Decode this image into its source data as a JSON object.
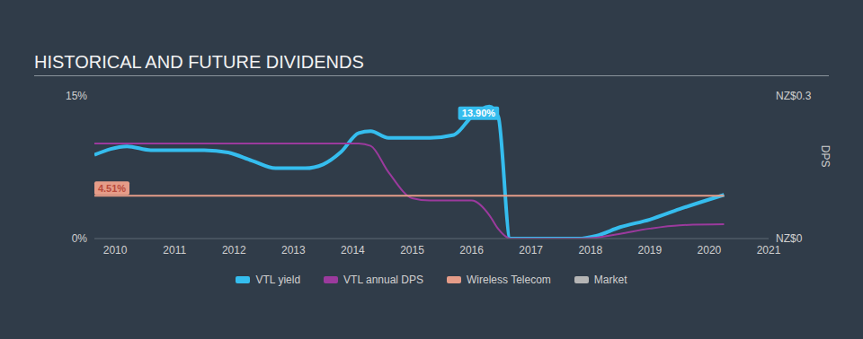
{
  "chart_data": {
    "type": "line",
    "title": "HISTORICAL AND FUTURE DIVIDENDS",
    "x": [
      2009.65,
      2010.2,
      2010.6,
      2011.5,
      2011.9,
      2012.3,
      2012.7,
      2013.2,
      2013.5,
      2013.8,
      2014.1,
      2014.3,
      2014.6,
      2015.0,
      2015.3,
      2015.7,
      2016.0,
      2016.3,
      2016.45,
      2016.65,
      2017.8,
      2018.1,
      2018.5,
      2019.0,
      2019.5,
      2020.25
    ],
    "series": [
      {
        "name": "VTL yield",
        "color": "#35bdee",
        "values": [
          8.8,
          9.7,
          9.3,
          9.3,
          9.05,
          8.2,
          7.4,
          7.4,
          7.8,
          9.1,
          11.1,
          11.3,
          10.6,
          10.6,
          10.6,
          10.9,
          12.8,
          13.9,
          12.8,
          0,
          0,
          0.3,
          1.2,
          2.0,
          3.1,
          4.6
        ]
      },
      {
        "name": "VTL annual DPS",
        "color": "#9b3a9d",
        "axis": "y2",
        "values": [
          0.2,
          0.2,
          0.2,
          0.2,
          0.2,
          0.2,
          0.2,
          0.2,
          0.2,
          0.2,
          0.2,
          0.195,
          0.14,
          0.085,
          0.08,
          0.08,
          0.08,
          0.049,
          0.02,
          0,
          0,
          0.002,
          0.01,
          0.021,
          0.028,
          0.03
        ]
      },
      {
        "name": "Wireless Telecom",
        "color": "#e59c88",
        "values": [
          4.51,
          4.51,
          4.51,
          4.51,
          4.51,
          4.51,
          4.51,
          4.51,
          4.51,
          4.51,
          4.51,
          4.51,
          4.51,
          4.51,
          4.51,
          4.51,
          4.51,
          4.51,
          4.51,
          4.51,
          4.51,
          4.51,
          4.51,
          4.51,
          4.51,
          4.51
        ]
      },
      {
        "name": "Market",
        "color": "#b5b5b5",
        "values": [
          null,
          null,
          null,
          null,
          null,
          null,
          null,
          null,
          null,
          null,
          null,
          null,
          null,
          null,
          null,
          null,
          null,
          null,
          null,
          null,
          null,
          null,
          null,
          null,
          null,
          null
        ]
      }
    ],
    "xlim": [
      2009.65,
      2021
    ],
    "xticks": [
      2010,
      2011,
      2012,
      2013,
      2014,
      2015,
      2016,
      2017,
      2018,
      2019,
      2020,
      2021
    ],
    "ylim": [
      0,
      15
    ],
    "yticks": [
      {
        "value": 0,
        "label": "0%"
      },
      {
        "value": 15,
        "label": "15%"
      }
    ],
    "y2lim": [
      0,
      0.3
    ],
    "y2ticks": [
      {
        "value": 0,
        "label": "NZ$0"
      },
      {
        "value": 0.3,
        "label": "NZ$0.3"
      }
    ],
    "y2_label": "DPS",
    "annotations": [
      {
        "series": "VTL yield",
        "x": 2016.3,
        "value": 13.9,
        "label": "13.90%"
      },
      {
        "series": "Wireless Telecom",
        "x": 2009.65,
        "value": 4.51,
        "label": "4.51%"
      }
    ],
    "grid": false,
    "legend": "bottom"
  }
}
